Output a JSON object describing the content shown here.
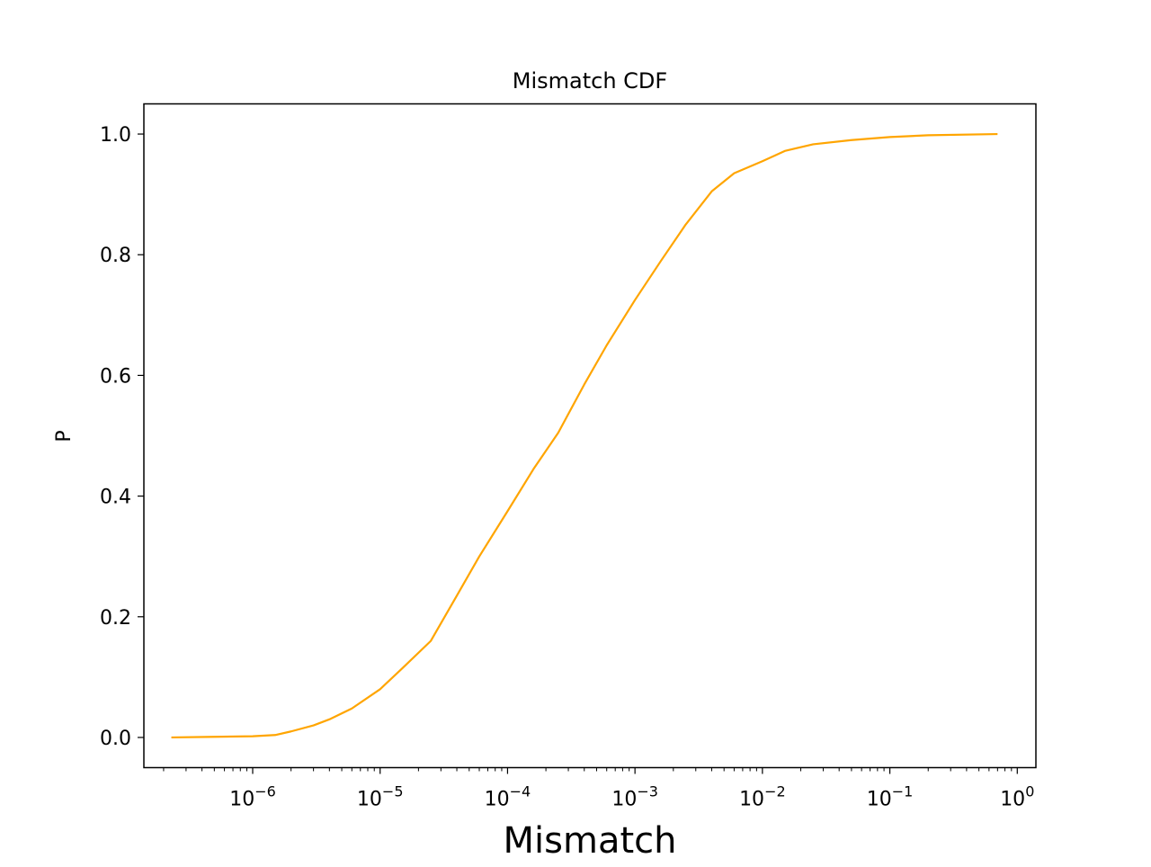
{
  "chart_data": {
    "type": "line",
    "title": "Mismatch CDF",
    "xlabel": "Mismatch",
    "ylabel": "P",
    "xscale": "log",
    "xlim": [
      1.4e-07,
      1.4
    ],
    "ylim": [
      -0.05,
      1.05
    ],
    "grid": false,
    "x_ticks": [
      {
        "value": 1e-06,
        "base": "10",
        "exp": "−6"
      },
      {
        "value": 1e-05,
        "base": "10",
        "exp": "−5"
      },
      {
        "value": 0.0001,
        "base": "10",
        "exp": "−4"
      },
      {
        "value": 0.001,
        "base": "10",
        "exp": "−3"
      },
      {
        "value": 0.01,
        "base": "10",
        "exp": "−2"
      },
      {
        "value": 0.1,
        "base": "10",
        "exp": "−1"
      },
      {
        "value": 1,
        "base": "10",
        "exp": "0"
      }
    ],
    "y_ticks": [
      {
        "value": 0.0,
        "label": "0.0"
      },
      {
        "value": 0.2,
        "label": "0.2"
      },
      {
        "value": 0.4,
        "label": "0.4"
      },
      {
        "value": 0.6,
        "label": "0.6"
      },
      {
        "value": 0.8,
        "label": "0.8"
      },
      {
        "value": 1.0,
        "label": "1.0"
      }
    ],
    "series": [
      {
        "color": "#ffa500",
        "points": [
          [
            2.3e-07,
            0.0
          ],
          [
            5e-07,
            0.001
          ],
          [
            1e-06,
            0.002
          ],
          [
            1.5e-06,
            0.004
          ],
          [
            2e-06,
            0.01
          ],
          [
            3e-06,
            0.02
          ],
          [
            4e-06,
            0.03
          ],
          [
            6e-06,
            0.048
          ],
          [
            1e-05,
            0.08
          ],
          [
            1.5e-05,
            0.115
          ],
          [
            2.5e-05,
            0.16
          ],
          [
            4e-05,
            0.235
          ],
          [
            6e-05,
            0.3
          ],
          [
            0.0001,
            0.375
          ],
          [
            0.00016,
            0.445
          ],
          [
            0.00025,
            0.505
          ],
          [
            0.0004,
            0.585
          ],
          [
            0.0006,
            0.65
          ],
          [
            0.001,
            0.725
          ],
          [
            0.0016,
            0.79
          ],
          [
            0.0025,
            0.85
          ],
          [
            0.004,
            0.905
          ],
          [
            0.006,
            0.935
          ],
          [
            0.01,
            0.955
          ],
          [
            0.015,
            0.972
          ],
          [
            0.025,
            0.983
          ],
          [
            0.05,
            0.99
          ],
          [
            0.1,
            0.995
          ],
          [
            0.2,
            0.998
          ],
          [
            0.7,
            1.0
          ]
        ]
      }
    ]
  }
}
